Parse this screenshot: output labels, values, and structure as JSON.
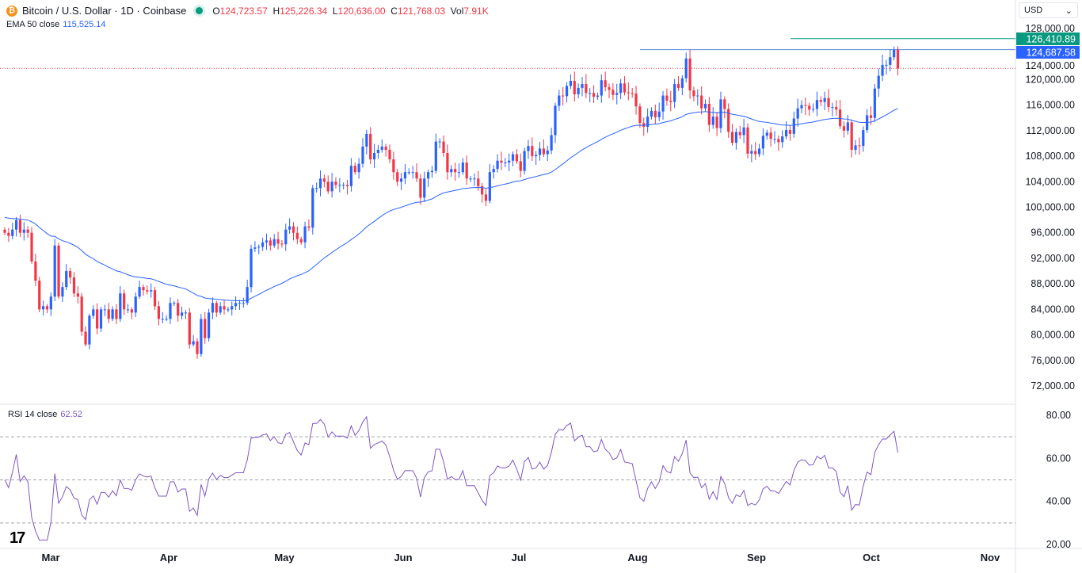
{
  "header": {
    "symbol_icon": "bitcoin-icon",
    "title": "Bitcoin / U.S. Dollar · 1D · Coinbase",
    "market_status": "open",
    "open_label": "O",
    "open": "124,723.57",
    "high_label": "H",
    "high": "125,226.34",
    "low_label": "L",
    "low": "120,636.00",
    "close_label": "C",
    "close": "121,768.03",
    "vol_label": "Vol",
    "vol": "7.91K"
  },
  "ema": {
    "label": "EMA 50 close",
    "value": "115,525.14"
  },
  "rsi": {
    "label": "RSI 14 close",
    "value": "62.52"
  },
  "currency": {
    "selected": "USD"
  },
  "colors": {
    "up": "#2962ff",
    "down": "#f23645",
    "ema": "#2962ff",
    "rsi": "#7e57c2",
    "level_high": "#089981",
    "level_mid": "#2962ff"
  },
  "price_axis": [
    "128,000.00",
    "124,000.00",
    "120,000.00",
    "116,000.00",
    "112,000.00",
    "108,000.00",
    "104,000.00",
    "100,000.00",
    "96,000.00",
    "92,000.00",
    "88,000.00",
    "84,000.00",
    "80,000.00",
    "76,000.00",
    "72,000.00"
  ],
  "rsi_axis": [
    "80.00",
    "60.00",
    "40.00",
    "20.00"
  ],
  "time_axis": [
    "Mar",
    "Apr",
    "May",
    "Jun",
    "Jul",
    "Aug",
    "Sep",
    "Oct",
    "Nov"
  ],
  "price_labels": {
    "high_level": "126,410.89",
    "mid_level": "124,687.58"
  },
  "chart_data": {
    "type": "candlestick",
    "title": "Bitcoin / U.S. Dollar · 1D · Coinbase",
    "start_date": "2025-02-17",
    "ylim": [
      72000,
      128000
    ],
    "rsi_ylim": [
      20,
      80
    ],
    "rsi_levels": [
      70,
      50,
      30
    ],
    "horizontal_lines": [
      126410.89,
      124687.58
    ],
    "last_candle": {
      "open": 124723.57,
      "high": 125226.34,
      "low": 120636.0,
      "close": 121768.03
    },
    "daily_close_thousands": [
      96,
      95.5,
      96.5,
      98,
      96,
      96.5,
      96,
      91.5,
      88.5,
      84,
      84.5,
      84,
      86,
      94,
      86,
      87.5,
      90,
      89,
      86.5,
      86,
      80.5,
      78.5,
      83,
      84,
      81,
      84,
      84,
      82.5,
      84,
      82.5,
      86.5,
      84,
      84,
      83.5,
      86,
      87.5,
      87,
      86.8,
      87,
      84.5,
      82.5,
      82.5,
      82.5,
      85,
      85,
      83,
      83.5,
      83.5,
      78.5,
      79,
      77,
      82.5,
      79.5,
      83.5,
      85,
      83.5,
      84.5,
      84,
      84,
      84.5,
      85,
      85,
      85,
      87.5,
      93.5,
      93.7,
      93.8,
      94.5,
      94.8,
      94,
      95,
      94.3,
      94.2,
      96.5,
      97,
      96,
      95,
      94.5,
      97,
      96.8,
      103,
      103,
      104.5,
      104,
      102.5,
      104,
      103.5,
      103.5,
      103.5,
      103.3,
      106.5,
      105.5,
      106.8,
      109.5,
      111.5,
      107.5,
      108.5,
      109,
      109.5,
      109,
      107.5,
      105.5,
      104,
      104.5,
      105.5,
      105.5,
      105.5,
      104.5,
      101.5,
      104.5,
      105.5,
      105.7,
      110.3,
      110.3,
      108.5,
      105.5,
      106,
      105.5,
      105.5,
      107,
      104.5,
      104.5,
      104.5,
      103.3,
      102,
      101,
      105.5,
      106,
      107.3,
      107,
      107,
      107.3,
      108.3,
      107.2,
      105.7,
      108.8,
      109.6,
      108,
      108.2,
      109.2,
      108.3,
      108.9,
      111.3,
      115.9,
      117.5,
      117.4,
      119,
      119.8,
      117.7,
      118.7,
      119.3,
      117.9,
      117.9,
      117.3,
      117.5,
      119.9,
      118.8,
      118.4,
      117.6,
      117.9,
      119.4,
      118,
      117.9,
      117.8,
      115.8,
      113.2,
      112.6,
      114.2,
      115.1,
      114.1,
      115,
      117.5,
      116.7,
      116.5,
      119.3,
      118.7,
      120.2,
      123.3,
      118.3,
      117.4,
      117.5,
      115.5,
      116.2,
      112.9,
      114.2,
      112.4,
      116.9,
      115.4,
      111.8,
      110.1,
      111.8,
      111.3,
      112.5,
      108.4,
      108.8,
      108.3,
      109.2,
      111.2,
      111.7,
      110.7,
      110.7,
      110.2,
      111.1,
      112.1,
      111.5,
      113.9,
      115.5,
      116,
      115.9,
      115.3,
      115.4,
      116.8,
      116.5,
      117.1,
      115.7,
      115.7,
      115.3,
      112.7,
      112,
      113.3,
      109,
      109.7,
      109.6,
      112.1,
      114.4,
      114,
      118.6,
      120.6,
      122.3,
      122.3,
      123.5,
      124.7,
      121.8
    ]
  }
}
